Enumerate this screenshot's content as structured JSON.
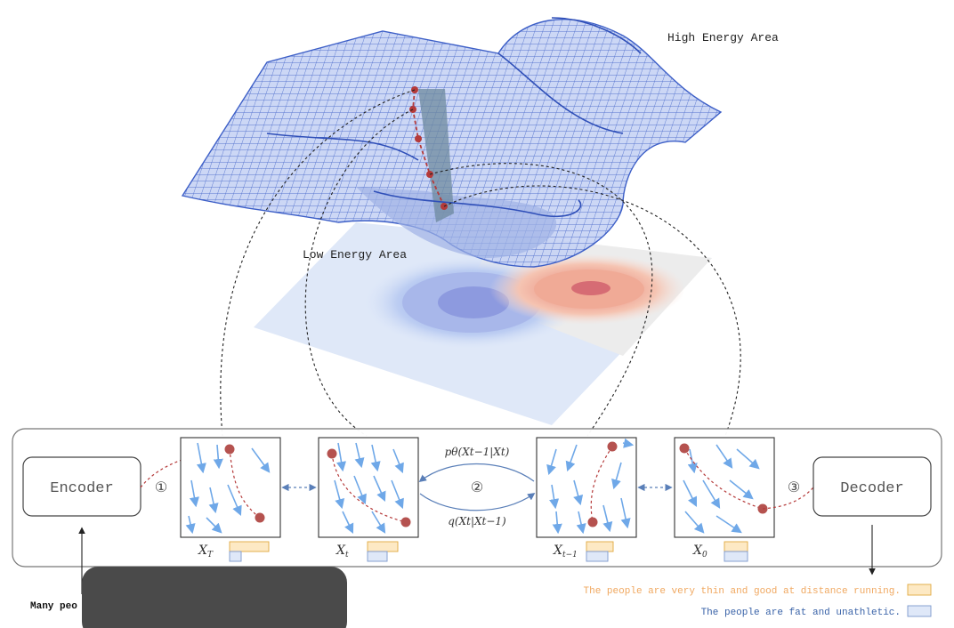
{
  "labels": {
    "high_energy": "High Energy Area",
    "low_energy": "Low Energy Area",
    "encoder": "Encoder",
    "decoder": "Decoder",
    "input_prefix": "Many peo"
  },
  "steps": {
    "one": "①",
    "two": "②",
    "three": "③"
  },
  "states": {
    "xT": "X",
    "xT_sub": "T",
    "xt": "X",
    "xt_sub": "t",
    "xt1": "X",
    "xt1_sub": "t−1",
    "x0": "X",
    "x0_sub": "0"
  },
  "transitions": {
    "reverse": "pθ(Xt−1|Xt)",
    "forward": "q(Xt|Xt−1)"
  },
  "outputs": {
    "positive": "The people are very thin and good at distance running.",
    "negative": "The people are fat and unathletic."
  },
  "colors": {
    "positive_text": "#f0a860",
    "negative_text": "#3a63a8",
    "mesh": "#4a6fd0",
    "trajectory": "#b53a3a",
    "arrow": "#6fa8e8",
    "panel_border": "#555555"
  }
}
